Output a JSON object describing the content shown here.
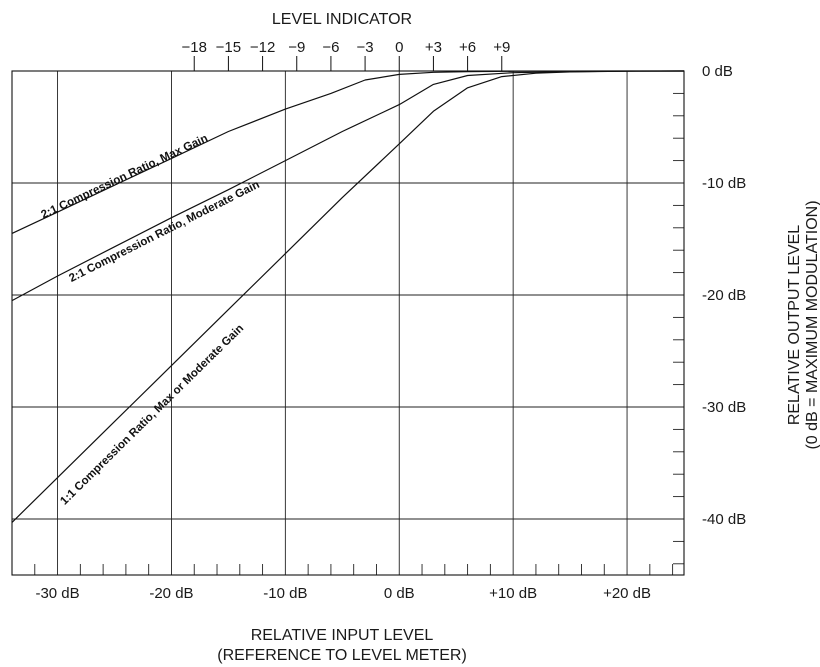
{
  "chart_data": {
    "type": "line",
    "title": "LEVEL INDICATOR",
    "xlabel": [
      "RELATIVE INPUT LEVEL",
      "(REFERENCE TO LEVEL METER)"
    ],
    "ylabel": [
      "RELATIVE OUTPUT LEVEL",
      "(0 dB = MAXIMUM MODULATION)"
    ],
    "xlim": [
      -34,
      25
    ],
    "ylim": [
      -45,
      0
    ],
    "grid": true,
    "x_ticks": [
      {
        "value": -30,
        "label": "-30 dB"
      },
      {
        "value": -20,
        "label": "-20 dB"
      },
      {
        "value": -10,
        "label": "-10 dB"
      },
      {
        "value": 0,
        "label": "0 dB"
      },
      {
        "value": 10,
        "label": "+10 dB"
      },
      {
        "value": 20,
        "label": "+20 dB"
      }
    ],
    "y_ticks": [
      {
        "value": 0,
        "label": "0 dB"
      },
      {
        "value": -10,
        "label": "-10 dB"
      },
      {
        "value": -20,
        "label": "-20 dB"
      },
      {
        "value": -30,
        "label": "-30 dB"
      },
      {
        "value": -40,
        "label": "-40 dB"
      }
    ],
    "level_indicator_ticks": [
      {
        "value": -18,
        "label": "−18"
      },
      {
        "value": -15,
        "label": "−15"
      },
      {
        "value": -12,
        "label": "−12"
      },
      {
        "value": -9,
        "label": "−9"
      },
      {
        "value": -6,
        "label": "−6"
      },
      {
        "value": -3,
        "label": "−3"
      },
      {
        "value": 0,
        "label": "0"
      },
      {
        "value": 3,
        "label": "+3"
      },
      {
        "value": 6,
        "label": "+6"
      },
      {
        "value": 9,
        "label": "+9"
      }
    ],
    "series": [
      {
        "name": "2:1 Compression Ratio, Max Gain",
        "x": [
          -34,
          -30,
          -25,
          -20,
          -15,
          -10,
          -6,
          -3,
          0,
          3,
          6,
          10,
          15,
          20,
          25
        ],
        "y": [
          -14.5,
          -12.6,
          -10.2,
          -7.8,
          -5.4,
          -3.4,
          -2.0,
          -0.8,
          -0.3,
          -0.12,
          -0.06,
          -0.03,
          -0.01,
          0.0,
          0.0
        ]
      },
      {
        "name": "2:1 Compression Ratio, Moderate Gain",
        "x": [
          -34,
          -30,
          -25,
          -20,
          -15,
          -10,
          -5,
          0,
          3,
          6,
          10,
          15,
          20,
          25
        ],
        "y": [
          -20.5,
          -18.3,
          -15.7,
          -13.1,
          -10.6,
          -8.0,
          -5.4,
          -3.0,
          -1.2,
          -0.4,
          -0.15,
          -0.05,
          -0.01,
          0.0
        ]
      },
      {
        "name": "1:1 Compression Ratio, Max or Moderate Gain",
        "x": [
          -34,
          -30,
          -25,
          -20,
          -15,
          -10,
          -5,
          0,
          3,
          6,
          9,
          12,
          15,
          20,
          25
        ],
        "y": [
          -40.3,
          -36.3,
          -31.3,
          -26.3,
          -21.3,
          -16.3,
          -11.3,
          -6.5,
          -3.6,
          -1.5,
          -0.5,
          -0.2,
          -0.08,
          -0.02,
          0.0
        ]
      }
    ],
    "curve_labels": [
      {
        "text": "2:1 Compression Ratio, Max Gain",
        "at_x": -24,
        "at_y": -9.7
      },
      {
        "text": "2:1 Compression Ratio, Moderate Gain",
        "at_x": -20.5,
        "at_y": -14.6
      },
      {
        "text": "1:1 Compression Ratio, Max or Moderate Gain",
        "at_x": -21.5,
        "at_y": -30.9
      }
    ]
  }
}
